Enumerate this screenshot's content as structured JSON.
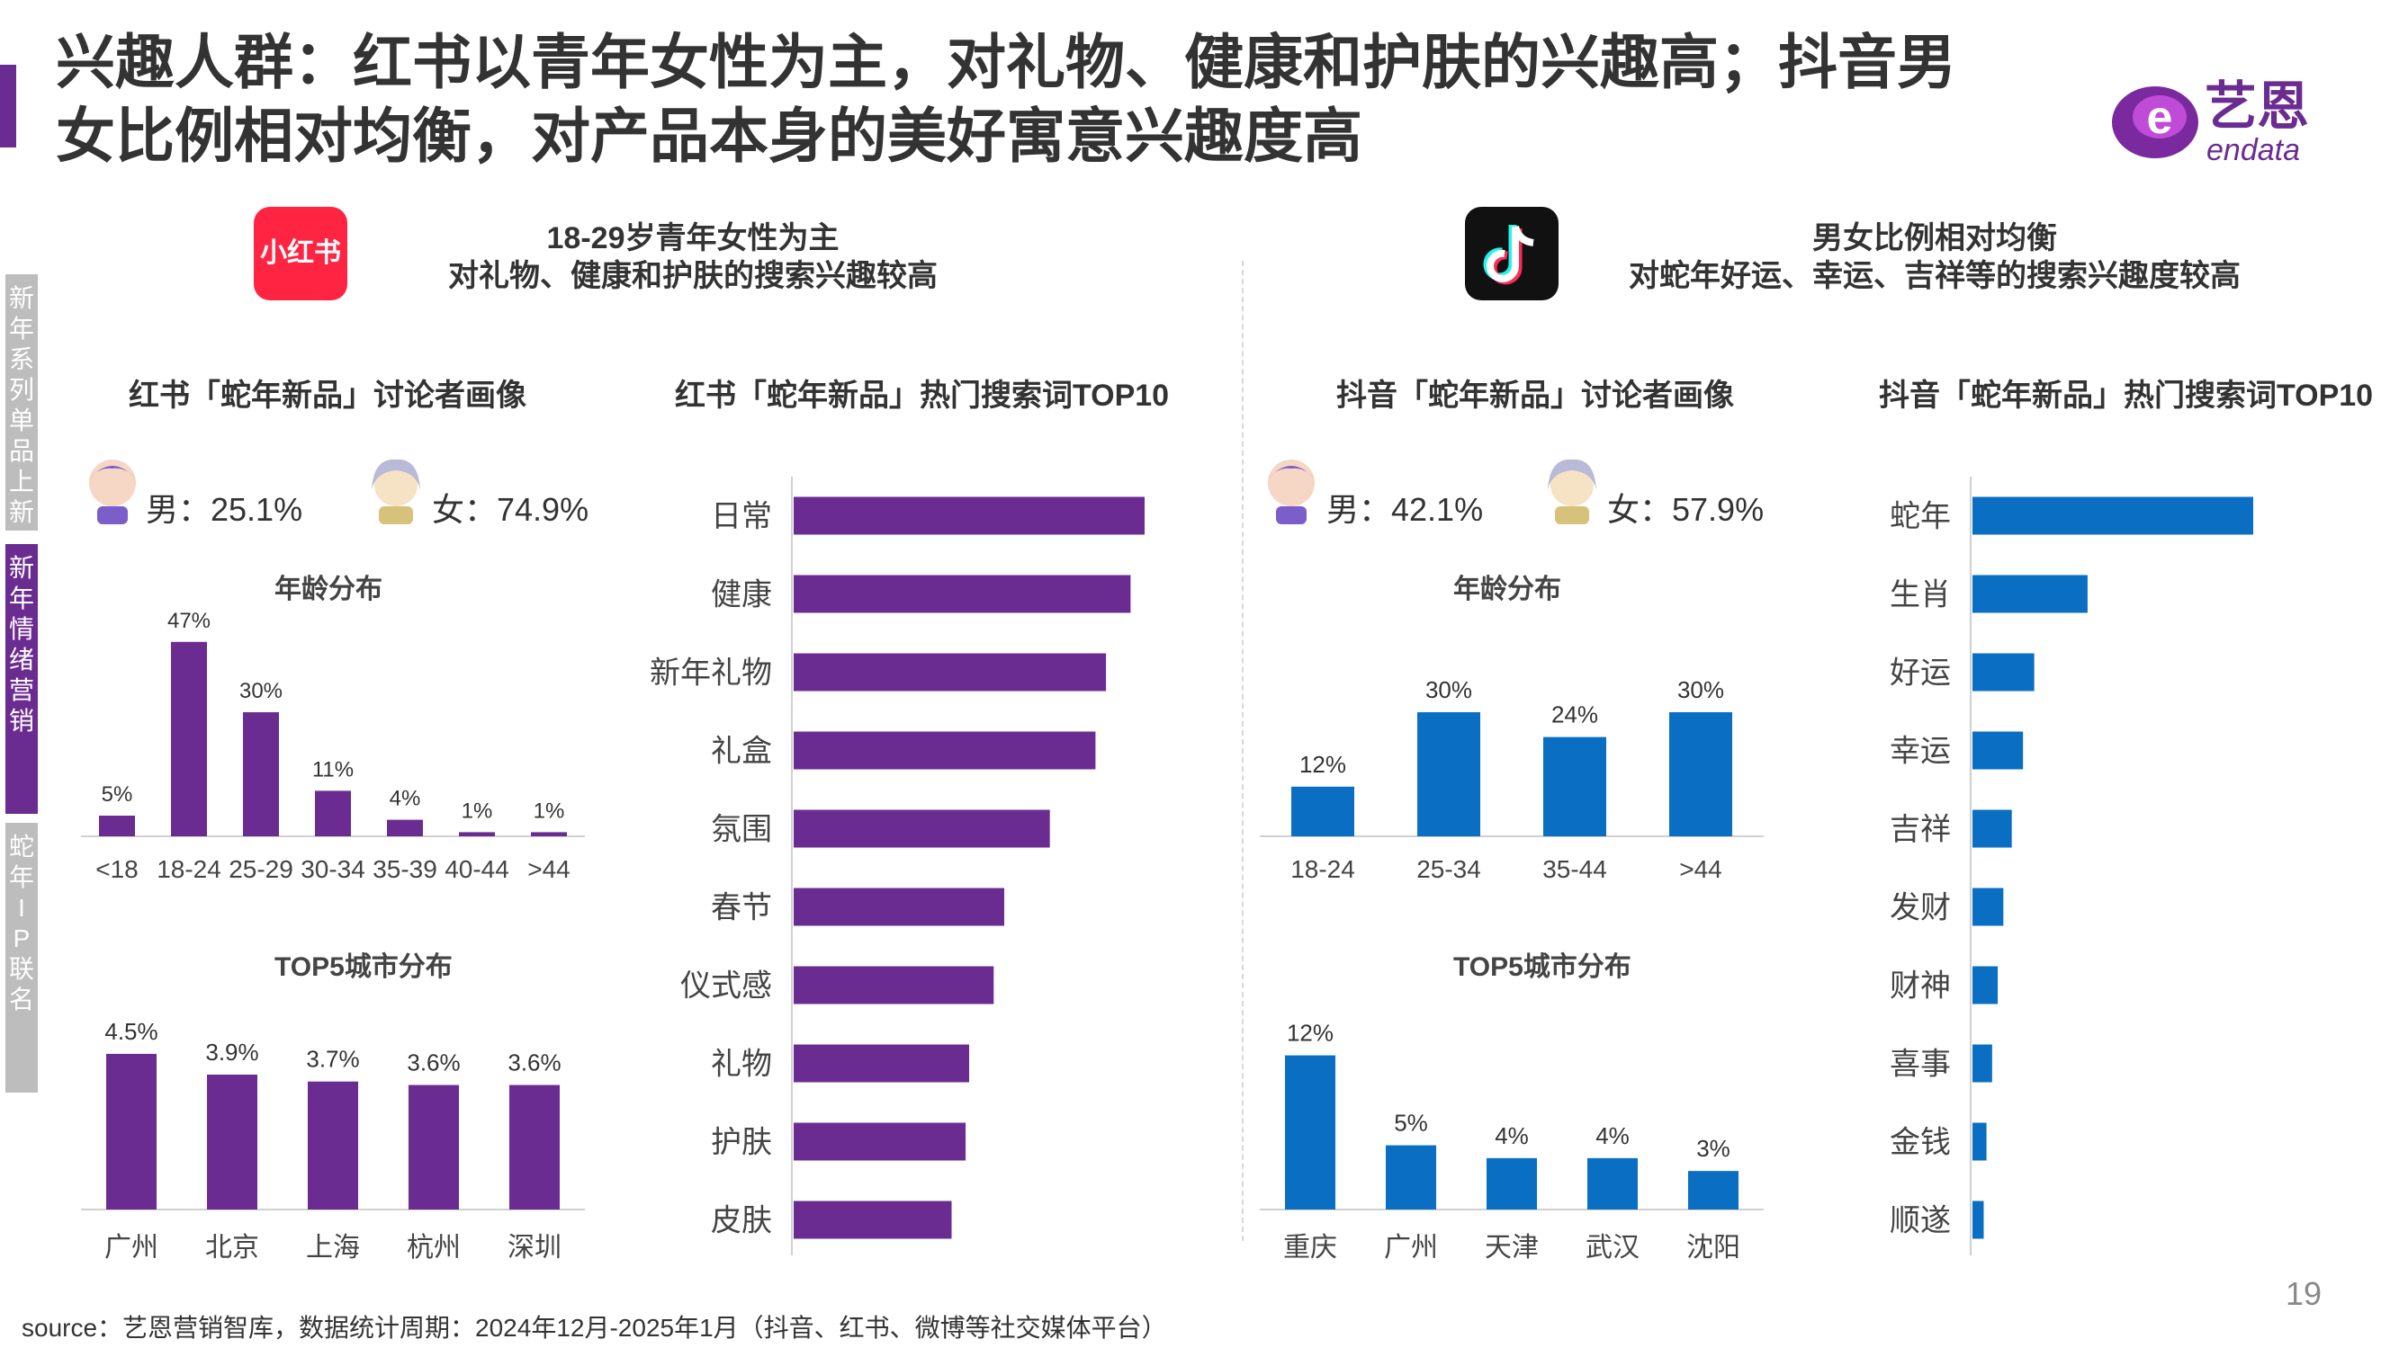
{
  "title": {
    "line1": "兴趣人群：红书以青年女性为主，对礼物、健康和护肤的兴趣高；抖音男",
    "line2": "女比例相对均衡，对产品本身的美好寓意兴趣度高"
  },
  "logo": {
    "brand_cn": "艺恩",
    "brand_en": "endata"
  },
  "side_tabs": [
    {
      "label": "新年系列单品上新",
      "color": "#bdbdbd"
    },
    {
      "label": "新年情绪营销",
      "color": "#6b2c91"
    },
    {
      "label": "蛇年IP联名",
      "color": "#bdbdbd"
    }
  ],
  "left": {
    "platform_icon_text": "小红书",
    "header_line1": "18-29岁青年女性为主",
    "header_line2": "对礼物、健康和护肤的搜索兴趣较高",
    "profile_title": "红书「蛇年新品」讨论者画像",
    "male_text": "男：25.1%",
    "female_text": "女：74.9%",
    "age_title": "年龄分布",
    "city_title": "TOP5城市分布",
    "search_title": "红书「蛇年新品」热门搜索词TOP10"
  },
  "right": {
    "header_line1": "男女比例相对均衡",
    "header_line2": "对蛇年好运、幸运、吉祥等的搜索兴趣度较高",
    "profile_title": "抖音「蛇年新品」讨论者画像",
    "male_text": "男：42.1%",
    "female_text": "女：57.9%",
    "age_title": "年龄分布",
    "city_title": "TOP5城市分布",
    "search_title": "抖音「蛇年新品」热门搜索词TOP10"
  },
  "colors": {
    "purple": "#6b2c91",
    "blue": "#0a6fc2",
    "axis": "#d0d0d0"
  },
  "chart_data": [
    {
      "id": "xhs_age",
      "type": "bar",
      "categories": [
        "<18",
        "18-24",
        "25-29",
        "30-34",
        "35-39",
        "40-44",
        ">44"
      ],
      "values": [
        5,
        47,
        30,
        11,
        4,
        1,
        1
      ],
      "labels": [
        "5%",
        "47%",
        "30%",
        "11%",
        "4%",
        "1%",
        "1%"
      ],
      "ylim": [
        0,
        50
      ]
    },
    {
      "id": "xhs_city",
      "type": "bar",
      "categories": [
        "广州",
        "北京",
        "上海",
        "杭州",
        "深圳"
      ],
      "values": [
        4.5,
        3.9,
        3.7,
        3.6,
        3.6
      ],
      "labels": [
        "4.5%",
        "3.9%",
        "3.7%",
        "3.6%",
        "3.6%"
      ],
      "ylim": [
        0,
        5.2
      ]
    },
    {
      "id": "xhs_search",
      "type": "bar",
      "orientation": "horizontal",
      "categories": [
        "日常",
        "健康",
        "新年礼物",
        "礼盒",
        "氛围",
        "春节",
        "仪式感",
        "礼物",
        "护肤",
        "皮肤"
      ],
      "values": [
        100,
        96,
        89,
        86,
        73,
        60,
        57,
        50,
        49,
        45
      ]
    },
    {
      "id": "dy_age",
      "type": "bar",
      "categories": [
        "18-24",
        "25-34",
        "35-44",
        ">44"
      ],
      "values": [
        12,
        30,
        24,
        30
      ],
      "labels": [
        "12%",
        "30%",
        "24%",
        "30%"
      ],
      "ylim": [
        0,
        50
      ]
    },
    {
      "id": "dy_city",
      "type": "bar",
      "categories": [
        "重庆",
        "广州",
        "天津",
        "武汉",
        "沈阳"
      ],
      "values": [
        12,
        5,
        4,
        4,
        3
      ],
      "labels": [
        "12%",
        "5%",
        "4%",
        "4%",
        "3%"
      ],
      "ylim": [
        0,
        14
      ]
    },
    {
      "id": "dy_search",
      "type": "bar",
      "orientation": "horizontal",
      "categories": [
        "蛇年",
        "生肖",
        "好运",
        "幸运",
        "吉祥",
        "发财",
        "财神",
        "喜事",
        "金钱",
        "顺遂"
      ],
      "values": [
        100,
        41,
        22,
        18,
        14,
        11,
        9,
        7,
        5,
        4
      ]
    }
  ],
  "source": "source：艺恩营销智库，数据统计周期：2024年12月-2025年1月（抖音、红书、微博等社交媒体平台）",
  "page_number": "19"
}
